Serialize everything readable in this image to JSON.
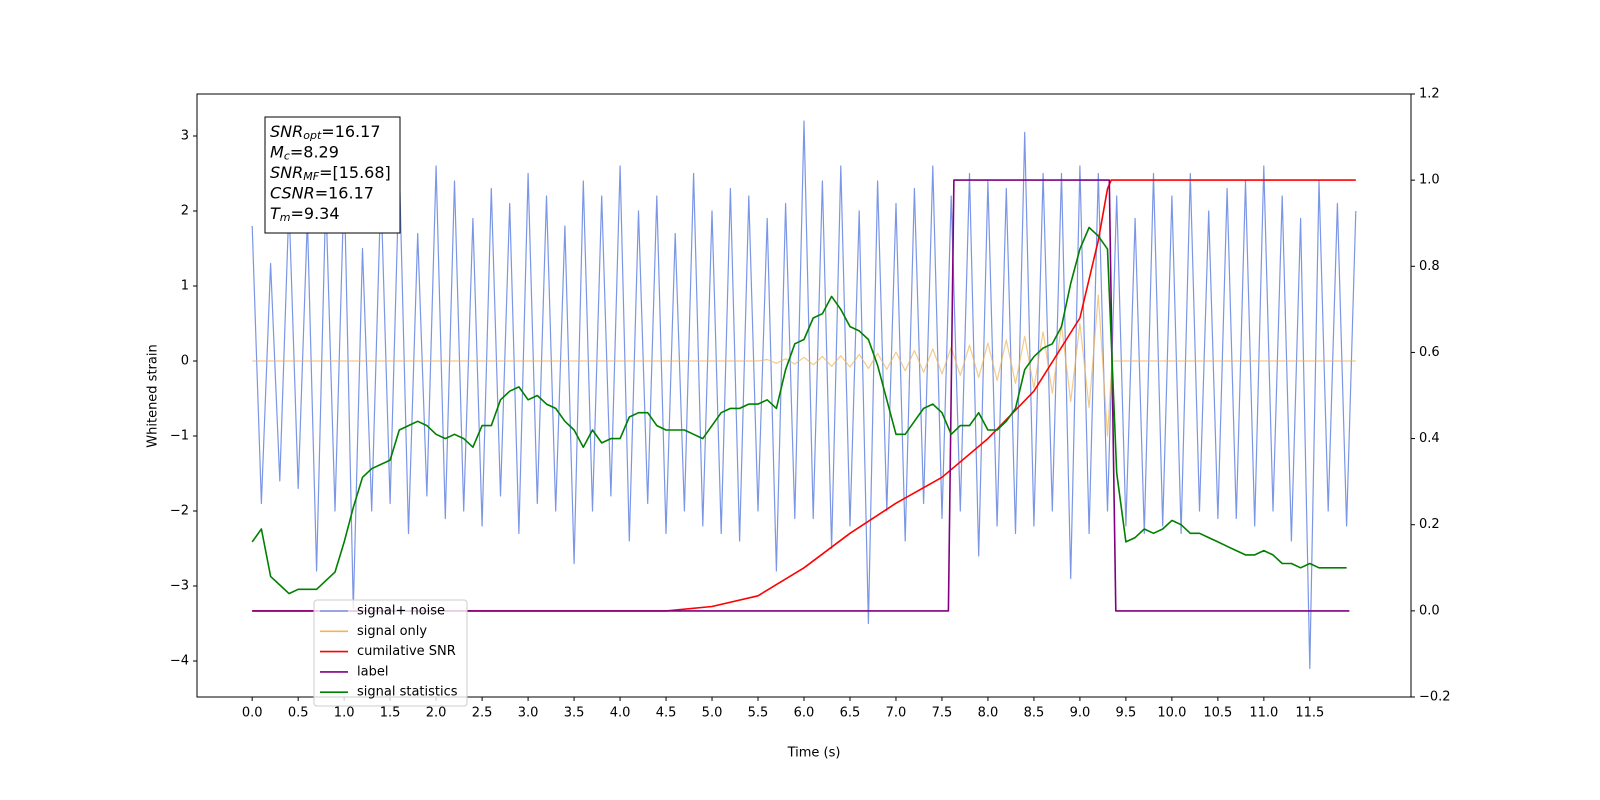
{
  "chart_data": {
    "type": "line",
    "xlabel": "Time (s)",
    "ylabel": "Whitened strain",
    "xlim": [
      -0.6,
      12.6
    ],
    "ylim": [
      -4.48,
      3.56
    ],
    "y2lim": [
      -0.2,
      1.2
    ],
    "xticks": [
      {
        "value": 0,
        "label": "0.0"
      },
      0.5,
      {
        "value": 1,
        "label": "1.0"
      },
      1.5,
      {
        "value": 2,
        "label": "2.0"
      },
      2.5,
      {
        "value": 3,
        "label": "3.0"
      },
      3.5,
      {
        "value": 4,
        "label": "4.0"
      },
      4.5,
      {
        "value": 5,
        "label": "5.0"
      },
      5.5,
      {
        "value": 6,
        "label": "6.0"
      },
      6.5,
      {
        "value": 7,
        "label": "7.0"
      },
      7.5,
      {
        "value": 8,
        "label": "8.0"
      },
      8.5,
      {
        "value": 9,
        "label": "9.0"
      },
      9.5,
      {
        "value": 10,
        "label": "10.0"
      },
      10.5,
      {
        "value": 11,
        "label": "11.0"
      },
      11.5
    ],
    "yticks": [
      {
        "value": -4,
        "label": "−4"
      },
      {
        "value": -3,
        "label": "−3"
      },
      {
        "value": -2,
        "label": "−2"
      },
      {
        "value": -1,
        "label": "−1"
      },
      0,
      1,
      2,
      3
    ],
    "y2ticks": [
      {
        "value": -0.2,
        "label": "−0.2"
      },
      {
        "value": 0,
        "label": "0.0"
      },
      0.2,
      0.4,
      0.6,
      0.8,
      {
        "value": 1,
        "label": "1.0"
      },
      1.2
    ],
    "legend_loc": "lower left",
    "annotation": [
      {
        "name": "SNR",
        "sub": "opt",
        "text": "=16.17"
      },
      {
        "name": "M",
        "sub": "c",
        "text": "=8.29"
      },
      {
        "name": "SNR",
        "sub": "MF",
        "text": "=[15.68]"
      },
      {
        "name": "CSNR",
        "sub": "",
        "text": "=16.17"
      },
      {
        "name": "T",
        "sub": "m",
        "text": "=9.34"
      }
    ],
    "series": [
      {
        "name": "signal+ noise",
        "color": "#7b96e6",
        "axis": "y",
        "x": [
          0,
          0.1,
          0.2,
          0.3,
          0.4,
          0.5,
          0.6,
          0.7,
          0.8,
          0.9,
          1,
          1.1,
          1.2,
          1.3,
          1.4,
          1.5,
          1.6,
          1.7,
          1.8,
          1.9,
          2,
          2.1,
          2.2,
          2.3,
          2.4,
          2.5,
          2.6,
          2.7,
          2.8,
          2.9,
          3,
          3.1,
          3.2,
          3.3,
          3.4,
          3.5,
          3.6,
          3.7,
          3.8,
          3.9,
          4,
          4.1,
          4.2,
          4.3,
          4.4,
          4.5,
          4.6,
          4.7,
          4.8,
          4.9,
          5,
          5.1,
          5.2,
          5.3,
          5.4,
          5.5,
          5.6,
          5.7,
          5.8,
          5.9,
          6,
          6.1,
          6.2,
          6.3,
          6.4,
          6.5,
          6.6,
          6.7,
          6.8,
          6.9,
          7,
          7.1,
          7.2,
          7.3,
          7.4,
          7.5,
          7.6,
          7.7,
          7.8,
          7.9,
          8,
          8.1,
          8.2,
          8.3,
          8.4,
          8.5,
          8.6,
          8.7,
          8.8,
          8.9,
          9,
          9.1,
          9.2,
          9.3,
          9.4,
          9.5,
          9.6,
          9.7,
          9.8,
          9.9,
          10,
          10.1,
          10.2,
          10.3,
          10.4,
          10.5,
          10.6,
          10.7,
          10.8,
          10.9,
          11,
          11.1,
          11.2,
          11.3,
          11.4,
          11.5,
          11.6,
          11.7,
          11.8,
          11.9,
          12
        ],
        "values": [
          1.8,
          -1.9,
          1.3,
          -1.6,
          2.1,
          -1.7,
          1.9,
          -2.8,
          2.2,
          -2.0,
          2.4,
          -3.3,
          1.5,
          -2.0,
          2.3,
          -1.9,
          2.6,
          -2.3,
          1.7,
          -1.8,
          2.6,
          -2.1,
          2.4,
          -2.0,
          1.9,
          -2.2,
          2.3,
          -1.8,
          2.1,
          -2.3,
          2.5,
          -1.9,
          2.2,
          -2.0,
          1.8,
          -2.7,
          2.4,
          -2.0,
          2.2,
          -1.8,
          2.6,
          -2.4,
          2.0,
          -1.9,
          2.2,
          -2.3,
          1.7,
          -2.0,
          2.5,
          -2.2,
          2.0,
          -2.3,
          2.3,
          -2.4,
          2.2,
          -2.0,
          1.9,
          -2.8,
          2.1,
          -2.1,
          3.2,
          -2.1,
          2.4,
          -2.5,
          2.6,
          -2.2,
          2.0,
          -3.5,
          2.4,
          -2.0,
          2.1,
          -2.4,
          2.3,
          -1.9,
          2.6,
          -2.1,
          2.2,
          -2.0,
          2.5,
          -2.6,
          2.4,
          -2.2,
          2.3,
          -2.3,
          3.05,
          -2.2,
          2.5,
          -2.0,
          2.5,
          -2.9,
          2.6,
          -2.3,
          2.5,
          -2.0,
          2.2,
          -2.2,
          1.9,
          -2.3,
          2.5,
          -2.2,
          2.2,
          -2.3,
          2.5,
          -2.0,
          2.0,
          -2.1,
          2.3,
          -2.1,
          2.4,
          -2.2,
          2.6,
          -2.0,
          2.2,
          -2.4,
          1.9,
          -4.1,
          2.4,
          -2.0,
          2.1,
          -2.2,
          2.0
        ]
      },
      {
        "name": "signal only",
        "color": "#f0b45a",
        "axis": "y",
        "x": [
          0,
          5.5,
          5.6,
          5.7,
          5.8,
          5.9,
          6,
          6.1,
          6.2,
          6.3,
          6.4,
          6.5,
          6.6,
          6.7,
          6.8,
          6.9,
          7,
          7.1,
          7.2,
          7.3,
          7.4,
          7.5,
          7.6,
          7.7,
          7.8,
          7.9,
          8,
          8.1,
          8.2,
          8.3,
          8.4,
          8.5,
          8.6,
          8.7,
          8.8,
          8.9,
          9,
          9.1,
          9.2,
          9.3,
          9.35,
          12
        ],
        "values": [
          0,
          0,
          0.02,
          -0.03,
          0.03,
          -0.04,
          0.05,
          -0.05,
          0.06,
          -0.07,
          0.07,
          -0.08,
          0.09,
          -0.1,
          0.1,
          -0.11,
          0.12,
          -0.13,
          0.14,
          -0.15,
          0.16,
          -0.17,
          0.18,
          -0.19,
          0.21,
          -0.22,
          0.24,
          -0.26,
          0.28,
          -0.3,
          0.33,
          -0.36,
          0.39,
          -0.43,
          0.48,
          -0.54,
          0.5,
          -0.62,
          0.88,
          -1.0,
          0,
          0
        ]
      },
      {
        "name": "cumilative SNR",
        "color": "#ff0000",
        "axis": "y2",
        "x": [
          0,
          4.5,
          5,
          5.5,
          6,
          6.5,
          7,
          7.5,
          8,
          8.5,
          9,
          9.2,
          9.3,
          9.34,
          12
        ],
        "values": [
          0,
          0,
          0.01,
          0.035,
          0.1,
          0.18,
          0.25,
          0.31,
          0.4,
          0.51,
          0.68,
          0.86,
          0.98,
          1,
          1
        ]
      },
      {
        "name": "label",
        "color": "#800080",
        "axis": "y2",
        "x": [
          0,
          7.57,
          7.63,
          9.32,
          9.39,
          11.93
        ],
        "values": [
          0,
          0,
          1,
          1,
          0,
          0
        ]
      },
      {
        "name": "signal statistics",
        "color": "#008000",
        "axis": "y2",
        "x": [
          0,
          0.1,
          0.2,
          0.3,
          0.4,
          0.5,
          0.6,
          0.7,
          0.8,
          0.9,
          1,
          1.1,
          1.2,
          1.3,
          1.4,
          1.5,
          1.6,
          1.7,
          1.8,
          1.9,
          2,
          2.1,
          2.2,
          2.3,
          2.4,
          2.5,
          2.6,
          2.7,
          2.8,
          2.9,
          3,
          3.1,
          3.2,
          3.3,
          3.4,
          3.5,
          3.6,
          3.7,
          3.8,
          3.9,
          4,
          4.1,
          4.2,
          4.3,
          4.4,
          4.5,
          4.6,
          4.7,
          4.8,
          4.9,
          5,
          5.1,
          5.2,
          5.3,
          5.4,
          5.5,
          5.6,
          5.7,
          5.8,
          5.9,
          6,
          6.1,
          6.2,
          6.3,
          6.4,
          6.5,
          6.6,
          6.7,
          6.8,
          6.9,
          7,
          7.1,
          7.2,
          7.3,
          7.4,
          7.5,
          7.6,
          7.7,
          7.8,
          7.9,
          8,
          8.1,
          8.2,
          8.3,
          8.4,
          8.5,
          8.6,
          8.7,
          8.8,
          8.9,
          9,
          9.1,
          9.2,
          9.3,
          9.4,
          9.5,
          9.6,
          9.7,
          9.8,
          9.9,
          10,
          10.1,
          10.2,
          10.3,
          10.4,
          10.5,
          10.6,
          10.7,
          10.8,
          10.9,
          11,
          11.1,
          11.2,
          11.3,
          11.4,
          11.5,
          11.6,
          11.7,
          11.8,
          11.9
        ],
        "values": [
          0.16,
          0.19,
          0.08,
          0.06,
          0.04,
          0.05,
          0.05,
          0.05,
          0.07,
          0.09,
          0.16,
          0.24,
          0.31,
          0.33,
          0.34,
          0.35,
          0.42,
          0.43,
          0.44,
          0.43,
          0.41,
          0.4,
          0.41,
          0.4,
          0.38,
          0.43,
          0.43,
          0.49,
          0.51,
          0.52,
          0.49,
          0.5,
          0.48,
          0.47,
          0.44,
          0.42,
          0.38,
          0.42,
          0.39,
          0.4,
          0.4,
          0.45,
          0.46,
          0.46,
          0.43,
          0.42,
          0.42,
          0.42,
          0.41,
          0.4,
          0.43,
          0.46,
          0.47,
          0.47,
          0.48,
          0.48,
          0.49,
          0.47,
          0.56,
          0.62,
          0.63,
          0.68,
          0.69,
          0.73,
          0.7,
          0.66,
          0.65,
          0.63,
          0.57,
          0.49,
          0.41,
          0.41,
          0.44,
          0.47,
          0.48,
          0.46,
          0.41,
          0.43,
          0.43,
          0.46,
          0.42,
          0.42,
          0.44,
          0.47,
          0.56,
          0.59,
          0.61,
          0.62,
          0.66,
          0.76,
          0.84,
          0.89,
          0.87,
          0.84,
          0.32,
          0.16,
          0.17,
          0.19,
          0.18,
          0.19,
          0.21,
          0.2,
          0.18,
          0.18,
          0.17,
          0.16,
          0.15,
          0.14,
          0.13,
          0.13,
          0.14,
          0.13,
          0.11,
          0.11,
          0.1,
          0.11,
          0.1,
          0.1,
          0.1,
          0.1
        ]
      }
    ]
  }
}
